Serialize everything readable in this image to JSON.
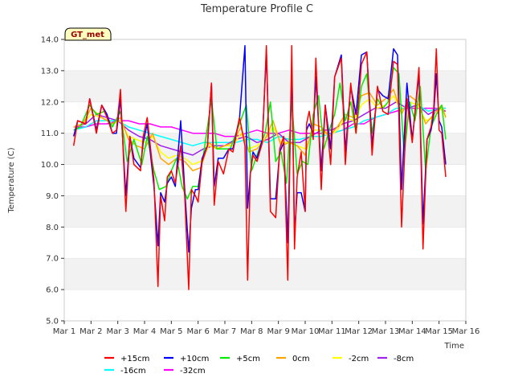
{
  "chart_data": {
    "type": "line",
    "title": "Temperature Profile C",
    "xlabel": "Time",
    "ylabel": "Temperature (C)",
    "ylim": [
      5.0,
      14.0
    ],
    "xlim": [
      0,
      15
    ],
    "yticks": [
      5.0,
      6.0,
      7.0,
      8.0,
      9.0,
      10.0,
      11.0,
      12.0,
      13.0,
      14.0
    ],
    "ytick_labels": [
      "5.0",
      "6.0",
      "7.0",
      "8.0",
      "9.0",
      "10.0",
      "11.0",
      "12.0",
      "13.0",
      "14.0"
    ],
    "xticks": [
      0,
      1,
      2,
      3,
      4,
      5,
      6,
      7,
      8,
      9,
      10,
      11,
      12,
      13,
      14,
      15
    ],
    "xtick_labels": [
      "Mar 1",
      "Mar 2",
      "Mar 3",
      "Mar 4",
      "Mar 5",
      "Mar 6",
      "Mar 7",
      "Mar 8",
      "Mar 9",
      "Mar 10",
      "Mar 11",
      "Mar 12",
      "Mar 13",
      "Mar 14",
      "Mar 15",
      "Mar 16"
    ],
    "grid": "horizontal bands",
    "legend_position": "bottom",
    "badge": "GT_met",
    "x_units_note": "days since Mar 1",
    "series": [
      {
        "name": "+15cm",
        "color": "#ff0000",
        "x": [
          0.35,
          0.5,
          0.8,
          0.95,
          1.2,
          1.4,
          1.6,
          1.8,
          1.95,
          2.1,
          2.3,
          2.45,
          2.6,
          2.85,
          2.95,
          3.1,
          3.35,
          3.5,
          3.6,
          3.75,
          3.85,
          4.0,
          4.15,
          4.35,
          4.5,
          4.65,
          4.75,
          4.9,
          5.0,
          5.15,
          5.35,
          5.5,
          5.6,
          5.75,
          5.95,
          6.15,
          6.3,
          6.55,
          6.75,
          6.85,
          6.95,
          7.05,
          7.2,
          7.4,
          7.55,
          7.7,
          7.9,
          8.05,
          8.2,
          8.35,
          8.5,
          8.6,
          8.7,
          8.85,
          9.0,
          9.05,
          9.15,
          9.3,
          9.4,
          9.6,
          9.75,
          9.95,
          10.1,
          10.35,
          10.5,
          10.7,
          10.9,
          11.1,
          11.3,
          11.5,
          11.7,
          11.9,
          12.1,
          12.3,
          12.45,
          12.6,
          12.8,
          13.0,
          13.25,
          13.4,
          13.55,
          13.7,
          13.8,
          13.9,
          14.0,
          14.1,
          14.25
        ],
        "y": [
          10.6,
          11.4,
          11.3,
          12.1,
          11.0,
          11.9,
          11.5,
          11.0,
          11.1,
          12.4,
          8.5,
          10.9,
          10.0,
          9.8,
          10.9,
          11.5,
          9.5,
          6.1,
          9.0,
          8.2,
          9.6,
          9.8,
          9.4,
          10.6,
          9.0,
          6.0,
          9.2,
          9.0,
          8.8,
          10.1,
          10.6,
          12.6,
          8.7,
          10.1,
          9.7,
          10.5,
          10.4,
          11.5,
          10.6,
          6.3,
          9.7,
          10.3,
          10.1,
          10.7,
          13.8,
          8.5,
          8.3,
          10.5,
          10.9,
          6.3,
          13.8,
          7.3,
          9.6,
          10.4,
          8.5,
          11.3,
          11.7,
          10.8,
          13.4,
          9.2,
          11.9,
          10.0,
          12.8,
          13.4,
          10.0,
          12.6,
          11.0,
          13.2,
          13.6,
          10.3,
          12.5,
          11.7,
          11.6,
          13.3,
          13.2,
          8.0,
          12.1,
          10.7,
          13.1,
          7.3,
          10.8,
          11.2,
          11.8,
          13.7,
          11.1,
          11.0,
          9.6
        ]
      },
      {
        "name": "+10cm",
        "color": "#0000ff",
        "x": [
          0.35,
          0.5,
          0.8,
          0.95,
          1.2,
          1.4,
          1.6,
          1.8,
          1.95,
          2.1,
          2.3,
          2.45,
          2.6,
          2.85,
          2.95,
          3.1,
          3.35,
          3.5,
          3.6,
          3.75,
          3.85,
          4.0,
          4.15,
          4.35,
          4.5,
          4.65,
          4.75,
          4.9,
          5.0,
          5.15,
          5.35,
          5.5,
          5.6,
          5.75,
          5.95,
          6.15,
          6.3,
          6.55,
          6.75,
          6.85,
          6.95,
          7.05,
          7.2,
          7.4,
          7.55,
          7.7,
          7.9,
          8.05,
          8.2,
          8.35,
          8.5,
          8.6,
          8.7,
          8.85,
          9.0,
          9.05,
          9.15,
          9.3,
          9.4,
          9.6,
          9.75,
          9.95,
          10.1,
          10.35,
          10.5,
          10.7,
          10.9,
          11.1,
          11.3,
          11.5,
          11.7,
          11.9,
          12.1,
          12.3,
          12.45,
          12.6,
          12.8,
          13.0,
          13.25,
          13.4,
          13.55,
          13.7,
          13.8,
          13.9,
          14.0,
          14.1,
          14.25
        ],
        "y": [
          10.9,
          11.4,
          11.3,
          12.1,
          11.1,
          11.9,
          11.6,
          11.0,
          11.0,
          12.1,
          9.0,
          10.9,
          10.2,
          9.9,
          10.7,
          11.3,
          9.3,
          7.4,
          9.1,
          8.8,
          9.4,
          9.6,
          9.3,
          11.4,
          9.2,
          7.2,
          8.6,
          9.2,
          9.2,
          10.2,
          10.6,
          12.6,
          9.3,
          10.2,
          10.2,
          10.5,
          10.5,
          11.5,
          13.8,
          8.6,
          9.7,
          10.4,
          10.2,
          10.8,
          13.6,
          8.9,
          8.9,
          10.4,
          10.7,
          7.5,
          13.1,
          7.8,
          9.1,
          9.1,
          8.5,
          11.1,
          11.3,
          11.0,
          12.8,
          9.8,
          11.9,
          10.5,
          12.8,
          13.5,
          10.4,
          12.5,
          11.6,
          13.5,
          13.6,
          10.6,
          12.4,
          12.2,
          12.1,
          13.7,
          13.5,
          9.2,
          12.6,
          10.8,
          12.9,
          8.1,
          10.8,
          11.1,
          11.6,
          12.9,
          11.4,
          11.2,
          10.0
        ]
      },
      {
        "name": "+5cm",
        "color": "#00ee00",
        "x": [
          0.35,
          0.6,
          0.95,
          1.2,
          1.5,
          1.8,
          2.1,
          2.35,
          2.6,
          2.9,
          3.1,
          3.35,
          3.55,
          3.8,
          4.0,
          4.2,
          4.4,
          4.6,
          4.8,
          5.0,
          5.2,
          5.5,
          5.7,
          5.95,
          6.2,
          6.5,
          6.8,
          7.0,
          7.2,
          7.5,
          7.7,
          7.9,
          8.1,
          8.3,
          8.5,
          8.7,
          8.9,
          9.1,
          9.3,
          9.5,
          9.7,
          9.9,
          10.1,
          10.3,
          10.5,
          10.7,
          10.9,
          11.1,
          11.3,
          11.5,
          11.7,
          11.9,
          12.1,
          12.3,
          12.5,
          12.7,
          12.9,
          13.1,
          13.3,
          13.5,
          13.7,
          13.9,
          14.1,
          14.25
        ],
        "y": [
          11.1,
          11.2,
          11.9,
          11.6,
          11.7,
          11.2,
          11.7,
          10.1,
          10.8,
          10.0,
          10.9,
          9.8,
          9.2,
          9.3,
          9.8,
          10.2,
          9.3,
          8.9,
          9.3,
          9.3,
          10.3,
          12.1,
          10.5,
          10.5,
          10.5,
          11.2,
          11.9,
          9.8,
          10.3,
          11.0,
          12.0,
          10.1,
          10.4,
          9.4,
          12.0,
          9.7,
          10.1,
          10.0,
          11.6,
          12.2,
          10.5,
          11.1,
          11.6,
          12.6,
          11.4,
          12.0,
          11.0,
          12.5,
          12.9,
          11.0,
          12.1,
          11.8,
          12.0,
          13.1,
          12.9,
          10.3,
          12.0,
          11.4,
          12.5,
          9.8,
          11.2,
          11.6,
          11.9,
          10.8
        ]
      },
      {
        "name": "0cm",
        "color": "#ffa500",
        "x": [
          0.35,
          0.7,
          1.0,
          1.4,
          1.8,
          2.1,
          2.4,
          2.7,
          3.0,
          3.3,
          3.6,
          3.9,
          4.2,
          4.5,
          4.8,
          5.1,
          5.4,
          5.7,
          6.0,
          6.3,
          6.6,
          6.9,
          7.2,
          7.5,
          7.8,
          8.1,
          8.4,
          8.7,
          9.0,
          9.3,
          9.6,
          9.9,
          10.2,
          10.5,
          10.8,
          11.1,
          11.4,
          11.7,
          12.0,
          12.3,
          12.6,
          12.9,
          13.2,
          13.5,
          13.8,
          14.1,
          14.25
        ],
        "y": [
          11.2,
          11.3,
          11.8,
          11.5,
          11.3,
          11.5,
          10.8,
          10.6,
          10.5,
          11.0,
          10.2,
          10.0,
          10.2,
          10.1,
          9.8,
          9.9,
          10.7,
          10.5,
          10.6,
          10.7,
          11.2,
          10.4,
          10.5,
          10.8,
          11.4,
          10.6,
          10.7,
          10.6,
          10.3,
          11.3,
          11.2,
          10.9,
          11.2,
          11.6,
          11.5,
          12.2,
          12.3,
          11.9,
          12.1,
          12.4,
          11.6,
          12.2,
          12.0,
          11.3,
          11.6,
          11.9,
          11.5
        ]
      },
      {
        "name": "-2cm",
        "color": "#ffff00",
        "x": [
          0.35,
          0.7,
          1.0,
          1.4,
          1.8,
          2.1,
          2.4,
          2.7,
          3.0,
          3.3,
          3.6,
          3.9,
          4.2,
          4.5,
          4.8,
          5.1,
          5.4,
          5.7,
          6.0,
          6.3,
          6.6,
          6.9,
          7.2,
          7.5,
          7.8,
          8.1,
          8.4,
          8.7,
          9.0,
          9.3,
          9.6,
          9.9,
          10.2,
          10.5,
          10.8,
          11.1,
          11.4,
          11.7,
          12.0,
          12.3,
          12.6,
          12.9,
          13.2,
          13.5,
          13.8,
          14.1,
          14.25
        ],
        "y": [
          11.2,
          11.3,
          11.6,
          11.5,
          11.3,
          11.4,
          10.9,
          10.8,
          10.7,
          10.9,
          10.4,
          10.2,
          10.3,
          10.2,
          10.0,
          10.1,
          10.6,
          10.5,
          10.6,
          10.6,
          11.0,
          10.5,
          10.6,
          10.8,
          11.2,
          10.7,
          10.7,
          10.6,
          10.5,
          11.1,
          11.1,
          10.9,
          11.1,
          11.5,
          11.4,
          11.9,
          12.1,
          11.8,
          11.9,
          12.2,
          11.7,
          12.0,
          11.9,
          11.4,
          11.5,
          11.8,
          11.5
        ]
      },
      {
        "name": "-8cm",
        "color": "#a020f0",
        "x": [
          0.35,
          0.8,
          1.2,
          1.6,
          2.0,
          2.4,
          2.8,
          3.2,
          3.6,
          4.0,
          4.4,
          4.8,
          5.2,
          5.6,
          6.0,
          6.4,
          6.8,
          7.2,
          7.6,
          8.0,
          8.4,
          8.8,
          9.2,
          9.6,
          10.0,
          10.4,
          10.8,
          11.2,
          11.6,
          12.0,
          12.4,
          12.8,
          13.2,
          13.6,
          14.0,
          14.25
        ],
        "y": [
          11.2,
          11.3,
          11.6,
          11.5,
          11.4,
          11.1,
          10.9,
          10.8,
          10.6,
          10.5,
          10.4,
          10.3,
          10.5,
          10.6,
          10.6,
          10.8,
          10.9,
          10.7,
          10.8,
          11.0,
          10.7,
          10.7,
          10.9,
          11.1,
          11.1,
          11.3,
          11.4,
          11.6,
          11.8,
          11.8,
          12.0,
          11.8,
          11.9,
          11.6,
          11.8,
          11.7
        ]
      },
      {
        "name": "-16cm",
        "color": "#00ffff",
        "x": [
          0.35,
          0.8,
          1.2,
          1.6,
          2.0,
          2.4,
          2.8,
          3.2,
          3.6,
          4.0,
          4.4,
          4.8,
          5.2,
          5.6,
          6.0,
          6.4,
          6.8,
          7.2,
          7.6,
          8.0,
          8.4,
          8.8,
          9.2,
          9.6,
          10.0,
          10.4,
          10.8,
          11.2,
          11.6,
          12.0,
          12.4,
          12.8,
          13.2,
          13.6,
          14.0,
          14.25
        ],
        "y": [
          11.1,
          11.2,
          11.4,
          11.4,
          11.4,
          11.2,
          11.1,
          11.0,
          10.9,
          10.8,
          10.7,
          10.6,
          10.7,
          10.7,
          10.7,
          10.7,
          10.8,
          10.8,
          10.7,
          10.9,
          10.8,
          10.8,
          10.9,
          10.9,
          11.0,
          11.1,
          11.2,
          11.4,
          11.5,
          11.6,
          11.8,
          11.8,
          11.9,
          11.7,
          11.8,
          11.8
        ]
      },
      {
        "name": "-32cm",
        "color": "#ff00ff",
        "x": [
          0.35,
          0.8,
          1.2,
          1.6,
          2.0,
          2.4,
          2.8,
          3.2,
          3.6,
          4.0,
          4.4,
          4.8,
          5.2,
          5.6,
          6.0,
          6.4,
          6.8,
          7.2,
          7.6,
          8.0,
          8.4,
          8.8,
          9.2,
          9.6,
          10.0,
          10.4,
          10.8,
          11.2,
          11.6,
          12.0,
          12.4,
          12.8,
          13.2,
          13.6,
          14.0,
          14.25
        ],
        "y": [
          11.2,
          11.2,
          11.3,
          11.3,
          11.4,
          11.4,
          11.3,
          11.3,
          11.2,
          11.2,
          11.1,
          11.0,
          11.0,
          11.0,
          10.9,
          10.9,
          11.0,
          11.1,
          11.0,
          11.0,
          11.1,
          11.0,
          11.0,
          11.0,
          11.0,
          11.1,
          11.3,
          11.3,
          11.5,
          11.6,
          11.7,
          11.8,
          11.8,
          11.8,
          11.8,
          11.8
        ]
      }
    ]
  }
}
